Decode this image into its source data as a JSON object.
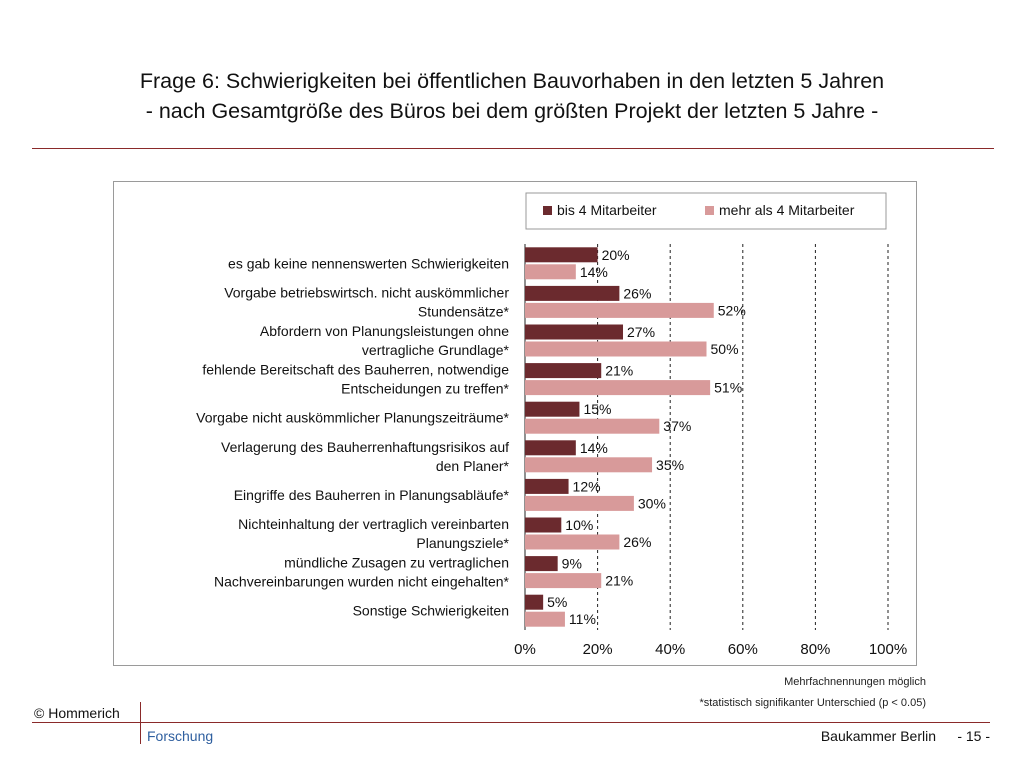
{
  "slide": {
    "title_line1": "Frage 6: Schwierigkeiten bei öffentlichen Bauvorhaben in den letzten 5 Jahren",
    "title_line2": "- nach Gesamtgröße des Büros bei dem größten Projekt der letzten 5 Jahre -"
  },
  "colors": {
    "series_dark": "#6b2a2e",
    "series_light": "#d89a9a",
    "rule": "#8a2a2a"
  },
  "chart_data": {
    "type": "bar",
    "orientation": "horizontal",
    "categories": [
      [
        "es gab keine nennenswerten Schwierigkeiten"
      ],
      [
        "Vorgabe betriebswirtsch. nicht auskömmlicher",
        "Stundensätze*"
      ],
      [
        "Abfordern von Planungsleistungen ohne",
        "vertragliche Grundlage*"
      ],
      [
        "fehlende Bereitschaft des Bauherren, notwendige",
        "Entscheidungen zu treffen*"
      ],
      [
        "Vorgabe nicht auskömmlicher Planungszeiträume*"
      ],
      [
        "Verlagerung des Bauherrenhaftungsrisikos auf",
        "den Planer*"
      ],
      [
        "Eingriffe des Bauherren in Planungsabläufe*"
      ],
      [
        "Nichteinhaltung der vertraglich vereinbarten",
        "Planungsziele*"
      ],
      [
        "mündliche Zusagen zu vertraglichen",
        "Nachvereinbarungen wurden nicht eingehalten*"
      ],
      [
        "Sonstige Schwierigkeiten"
      ]
    ],
    "series": [
      {
        "name": "bis 4 Mitarbeiter",
        "values": [
          20,
          26,
          27,
          21,
          15,
          14,
          12,
          10,
          9,
          5
        ],
        "labels": [
          "20%",
          "26%",
          "27%",
          "21%",
          "15%",
          "14%",
          "12%",
          "10%",
          "9%",
          "5%"
        ]
      },
      {
        "name": "mehr als 4 Mitarbeiter",
        "values": [
          14,
          52,
          50,
          51,
          37,
          35,
          30,
          26,
          21,
          11
        ],
        "labels": [
          "14%",
          "52%",
          "50%",
          "51%",
          "37%",
          "35%",
          "30%",
          "26%",
          "21%",
          "11%"
        ]
      }
    ],
    "xlim": [
      0,
      100
    ],
    "xticks": [
      0,
      20,
      40,
      60,
      80,
      100
    ],
    "xtick_labels": [
      "0%",
      "20%",
      "40%",
      "60%",
      "80%",
      "100%"
    ],
    "grid": "vertical dashed",
    "legend": "top"
  },
  "footnotes": {
    "multi": "Mehrfachnennungen möglich",
    "significance": "*statistisch signifikanter Unterschied  (p < 0.05)"
  },
  "footer": {
    "copyright": "© Hommerich",
    "research": "Forschung",
    "org": "Baukammer Berlin",
    "page": "- 15 -"
  }
}
